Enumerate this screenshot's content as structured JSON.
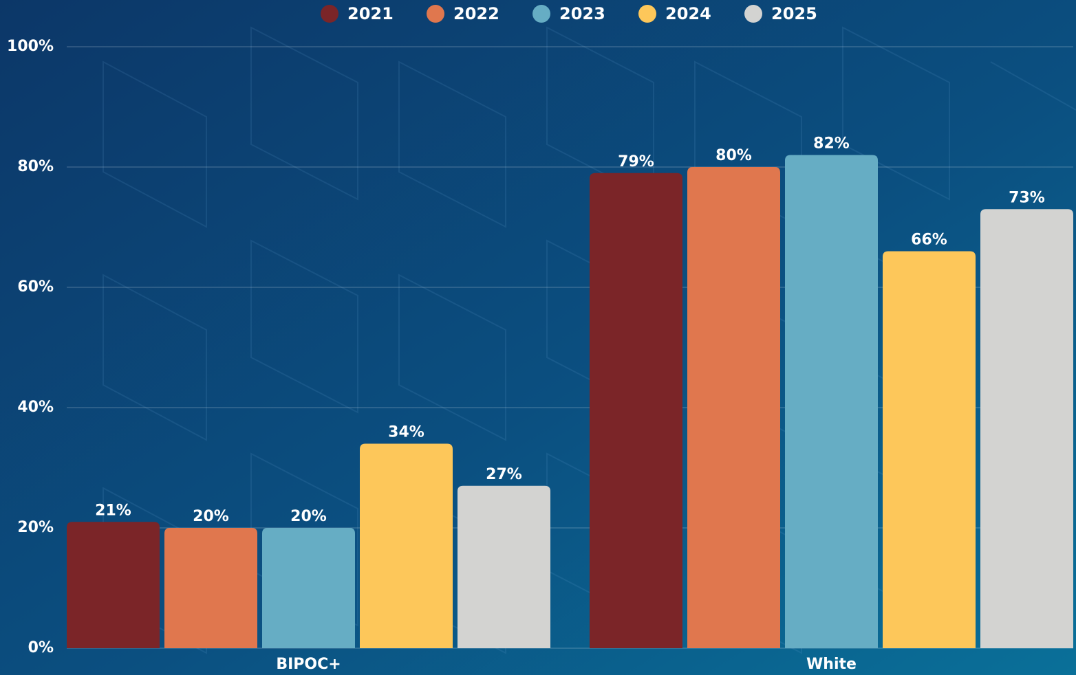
{
  "chart_data": {
    "type": "bar",
    "categories": [
      "BIPOC+",
      "White"
    ],
    "series": [
      {
        "name": "2021",
        "color": "#7b2528",
        "values": [
          21,
          79
        ],
        "value_labels": [
          "21%",
          "79%"
        ]
      },
      {
        "name": "2022",
        "color": "#e0774e",
        "values": [
          20,
          80
        ],
        "value_labels": [
          "20%",
          "80%"
        ]
      },
      {
        "name": "2023",
        "color": "#66adc4",
        "values": [
          20,
          82
        ],
        "value_labels": [
          "20%",
          "82%"
        ]
      },
      {
        "name": "2024",
        "color": "#fdc75a",
        "values": [
          34,
          66
        ],
        "value_labels": [
          "34%",
          "66%"
        ]
      },
      {
        "name": "2025",
        "color": "#d3d3d1",
        "values": [
          27,
          73
        ],
        "value_labels": [
          "27%",
          "73%"
        ]
      }
    ],
    "ylim": [
      0,
      100
    ],
    "yticks": [
      {
        "value": 0,
        "label": "0%"
      },
      {
        "value": 20,
        "label": "20%"
      },
      {
        "value": 40,
        "label": "40%"
      },
      {
        "value": 60,
        "label": "60%"
      },
      {
        "value": 80,
        "label": "80%"
      },
      {
        "value": 100,
        "label": "100%"
      }
    ],
    "grid": true,
    "legend": "top"
  }
}
